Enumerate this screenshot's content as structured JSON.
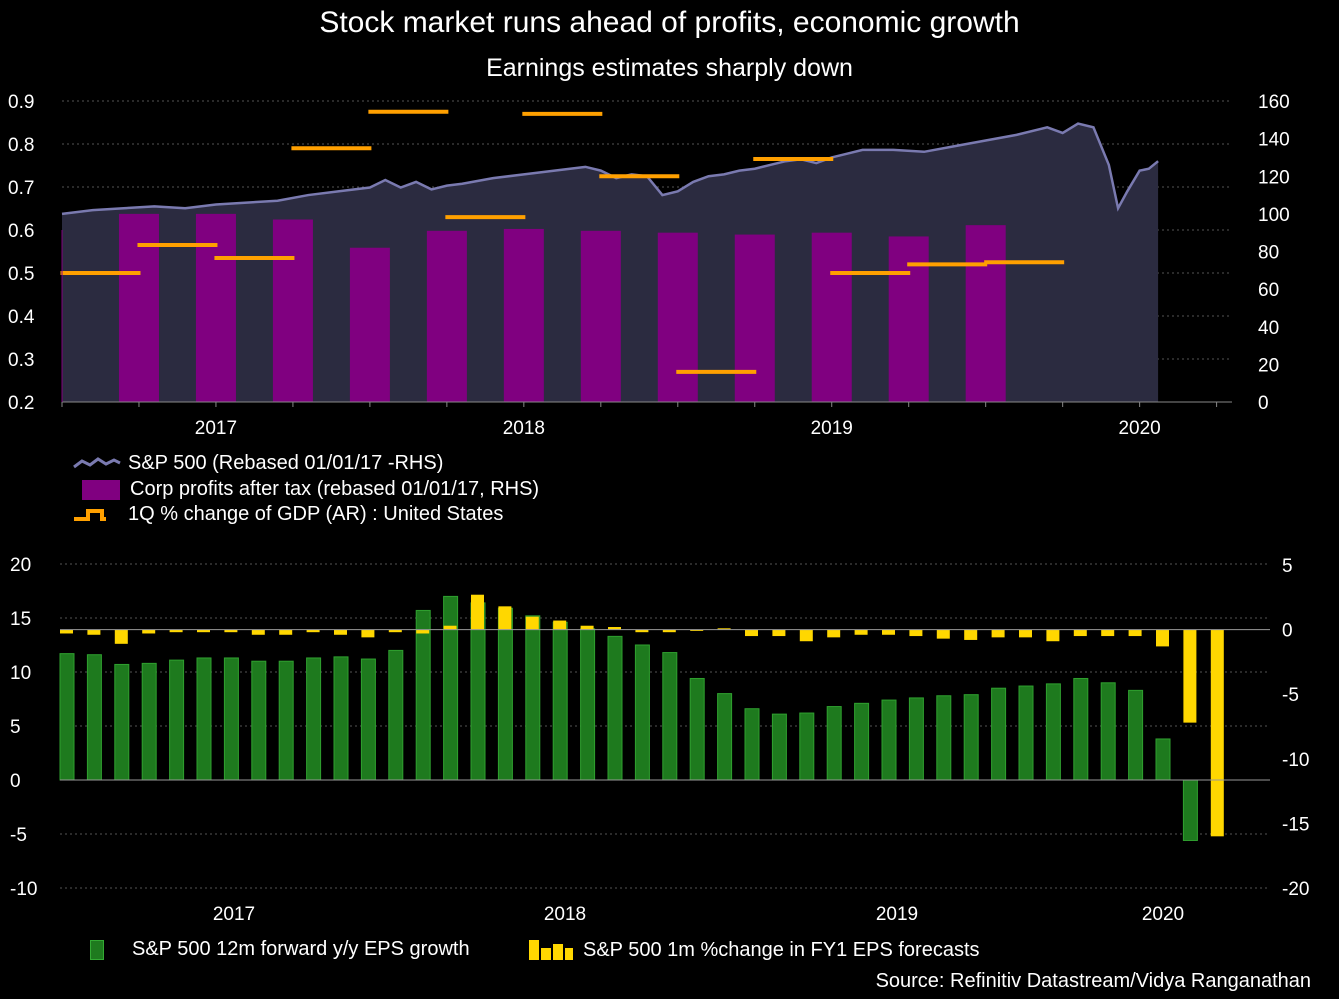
{
  "title": "Stock market runs ahead of profits, economic growth",
  "subtitle": "Earnings estimates sharply down",
  "source": "Source: Refinitiv Datastream/Vidya Ranganathan",
  "colors": {
    "sp500_area": "#2b2b40",
    "sp500_line": "#7a7ab0",
    "profits": "#800080",
    "gdp": "#ffa000",
    "eps_growth": "#1e7a1e",
    "eps_forecast": "#ffd700"
  },
  "chart_data": [
    {
      "type": "line",
      "x_tick_labels": [
        "2017",
        "2018",
        "2019",
        "2020"
      ],
      "left_axis": {
        "ticks": [
          "0.9",
          "0.8",
          "0.7",
          "0.6",
          "0.5",
          "0.4",
          "0.3",
          "0.2"
        ],
        "ylim": [
          0.2,
          0.9
        ]
      },
      "right_axis": {
        "ticks": [
          "160",
          "140",
          "120",
          "100",
          "80",
          "60",
          "40",
          "20",
          "0"
        ],
        "ylim": [
          0,
          160
        ]
      },
      "legend": [
        "S&P 500 (Rebased 01/01/17 -RHS)",
        "Corp profits after tax (rebased 01/01/17, RHS)",
        "1Q % change of GDP (AR) : United States"
      ],
      "series": [
        {
          "name": "S&P 500 (Rebased 01/01/17 -RHS)",
          "axis": "right",
          "type": "area",
          "x": [
            2016.5,
            2016.6,
            2016.7,
            2016.8,
            2016.9,
            2017.0,
            2017.1,
            2017.2,
            2017.3,
            2017.4,
            2017.5,
            2017.55,
            2017.6,
            2017.65,
            2017.7,
            2017.75,
            2017.8,
            2017.9,
            2018.0,
            2018.05,
            2018.1,
            2018.15,
            2018.2,
            2018.25,
            2018.3,
            2018.35,
            2018.4,
            2018.45,
            2018.5,
            2018.55,
            2018.6,
            2018.65,
            2018.7,
            2018.75,
            2018.8,
            2018.85,
            2018.9,
            2018.95,
            2019.0,
            2019.05,
            2019.1,
            2019.2,
            2019.3,
            2019.4,
            2019.5,
            2019.6,
            2019.7,
            2019.75,
            2019.8,
            2019.85,
            2019.9,
            2019.93,
            2019.96,
            2020.0,
            2020.03,
            2020.06
          ],
          "values": [
            100,
            102,
            103,
            104,
            103,
            105,
            106,
            107,
            110,
            112,
            114,
            118,
            114,
            117,
            113,
            115,
            116,
            119,
            121,
            122,
            123,
            124,
            125,
            123,
            119,
            121,
            120,
            110,
            112,
            117,
            120,
            121,
            123,
            124,
            126,
            128,
            129,
            127,
            130,
            132,
            134,
            134,
            133,
            136,
            139,
            142,
            146,
            143,
            148,
            146,
            126,
            103,
            112,
            123,
            124,
            128
          ]
        },
        {
          "name": "Corp profits after tax (rebased 01/01/17, RHS)",
          "axis": "right",
          "type": "bar",
          "x": [
            2016.75,
            2017.0,
            2017.25,
            2017.5,
            2017.75,
            2018.0,
            2018.25,
            2018.5,
            2018.75,
            2019.0,
            2019.25,
            2019.5
          ],
          "values": [
            100,
            100,
            97,
            82,
            91,
            92,
            91,
            90,
            89,
            90,
            88,
            94
          ]
        },
        {
          "name": "1Q % change of GDP (AR) : United States",
          "axis": "left",
          "type": "step",
          "x": [
            2016.625,
            2016.875,
            2017.125,
            2017.375,
            2017.625,
            2017.875,
            2018.125,
            2018.375,
            2018.625,
            2018.875,
            2019.125,
            2019.375,
            2019.625
          ],
          "values": [
            0.5,
            0.565,
            0.535,
            0.79,
            0.875,
            0.63,
            0.87,
            0.725,
            0.27,
            0.765,
            0.5,
            0.52,
            0.525
          ]
        }
      ]
    },
    {
      "type": "bar",
      "x_tick_labels": [
        "2017",
        "2018",
        "2019",
        "2020"
      ],
      "left_axis": {
        "ticks": [
          "20",
          "15",
          "10",
          "5",
          "0",
          "-5",
          "-10"
        ],
        "ylim": [
          -10,
          20
        ]
      },
      "right_axis": {
        "ticks": [
          "5",
          "0",
          "-5",
          "-10",
          "-15",
          "-20"
        ],
        "ylim": [
          -20,
          5
        ]
      },
      "legend": [
        "S&P 500 12m forward y/y EPS growth",
        "S&P 500 1m %change in FY1 EPS forecasts"
      ],
      "series": [
        {
          "name": "S&P 500 12m forward y/y EPS growth",
          "axis": "left",
          "values": [
            11.7,
            11.6,
            10.7,
            10.8,
            11.1,
            11.3,
            11.3,
            11.0,
            11.0,
            11.3,
            11.4,
            11.2,
            12.0,
            15.7,
            17.0,
            16.4,
            15.9,
            15.2,
            14.6,
            14.0,
            13.3,
            12.5,
            11.8,
            9.4,
            8.0,
            6.6,
            6.1,
            6.2,
            6.8,
            7.1,
            7.4,
            7.6,
            7.8,
            7.9,
            8.5,
            8.7,
            8.9,
            9.4,
            9.0,
            8.3,
            3.8,
            -5.6
          ]
        },
        {
          "name": "S&P 500 1m %change in FY1 EPS forecasts",
          "axis": "right",
          "values": [
            -0.3,
            -0.4,
            -1.1,
            -0.3,
            -0.2,
            -0.2,
            -0.2,
            -0.4,
            -0.4,
            -0.2,
            -0.4,
            -0.6,
            -0.2,
            -0.3,
            0.3,
            2.7,
            1.8,
            1.0,
            0.7,
            0.3,
            0.2,
            -0.2,
            -0.2,
            -0.1,
            0.1,
            -0.5,
            -0.5,
            -0.9,
            -0.6,
            -0.4,
            -0.4,
            -0.5,
            -0.7,
            -0.8,
            -0.6,
            -0.6,
            -0.9,
            -0.5,
            -0.5,
            -0.5,
            -1.3,
            -7.2,
            -16.0
          ]
        }
      ]
    }
  ]
}
